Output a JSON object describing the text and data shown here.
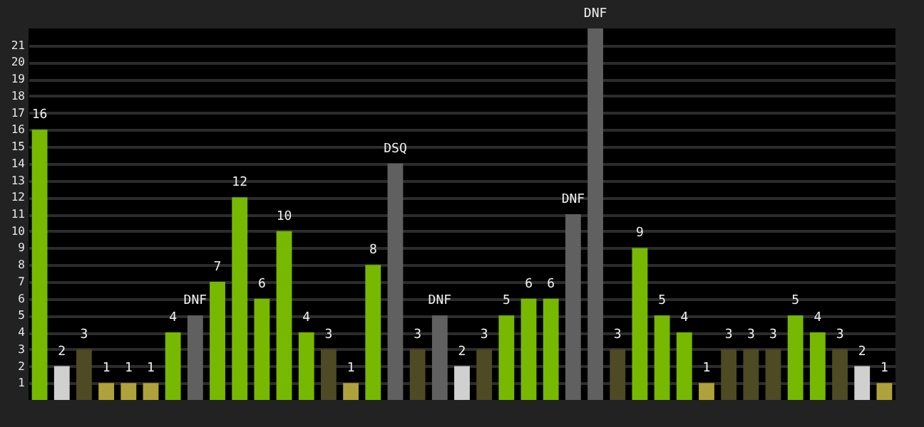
{
  "chart_data": {
    "type": "bar",
    "categories": [
      null,
      null,
      null,
      null,
      null,
      null,
      null,
      null,
      null,
      null,
      null,
      null,
      null,
      null,
      null,
      null,
      null,
      null,
      null,
      null,
      null,
      null,
      null,
      null,
      null,
      null,
      null,
      null,
      null,
      null,
      null,
      null,
      null,
      null,
      null,
      null,
      null,
      null,
      null
    ],
    "values": [
      16,
      2,
      3,
      1,
      1,
      1,
      4,
      5,
      7,
      12,
      6,
      10,
      4,
      3,
      1,
      8,
      14,
      3,
      5,
      2,
      3,
      5,
      6,
      6,
      11,
      22,
      3,
      9,
      5,
      4,
      1,
      3,
      3,
      3,
      5,
      4,
      3,
      2,
      1
    ],
    "value_labels": [
      "16",
      "2",
      "3",
      "1",
      "1",
      "1",
      "4",
      "DNF",
      "7",
      "12",
      "6",
      "10",
      "4",
      "3",
      "1",
      "8",
      "DSQ",
      "3",
      "DNF",
      "2",
      "3",
      "5",
      "6",
      "6",
      "DNF",
      "DNF",
      "3",
      "9",
      "5",
      "4",
      "1",
      "3",
      "3",
      "3",
      "5",
      "4",
      "3",
      "2",
      "1"
    ],
    "colors": [
      "#76b900",
      "#d0d0d0",
      "#4d4a24",
      "#b0a23a",
      "#b0a23a",
      "#b0a23a",
      "#76b900",
      "#606060",
      "#76b900",
      "#76b900",
      "#76b900",
      "#76b900",
      "#76b900",
      "#4d4a24",
      "#b0a23a",
      "#76b900",
      "#606060",
      "#4d4a24",
      "#606060",
      "#d0d0d0",
      "#4d4a24",
      "#76b900",
      "#76b900",
      "#76b900",
      "#606060",
      "#606060",
      "#4d4a24",
      "#76b900",
      "#76b900",
      "#76b900",
      "#b0a23a",
      "#4d4a24",
      "#4d4a24",
      "#4d4a24",
      "#76b900",
      "#76b900",
      "#4d4a24",
      "#d0d0d0",
      "#b0a23a"
    ],
    "ylim": [
      0,
      22
    ],
    "yticks": [
      1,
      2,
      3,
      4,
      5,
      6,
      7,
      8,
      9,
      10,
      11,
      12,
      13,
      14,
      15,
      16,
      17,
      18,
      19,
      20,
      21
    ],
    "grid": "y",
    "tick_labels": "y"
  }
}
